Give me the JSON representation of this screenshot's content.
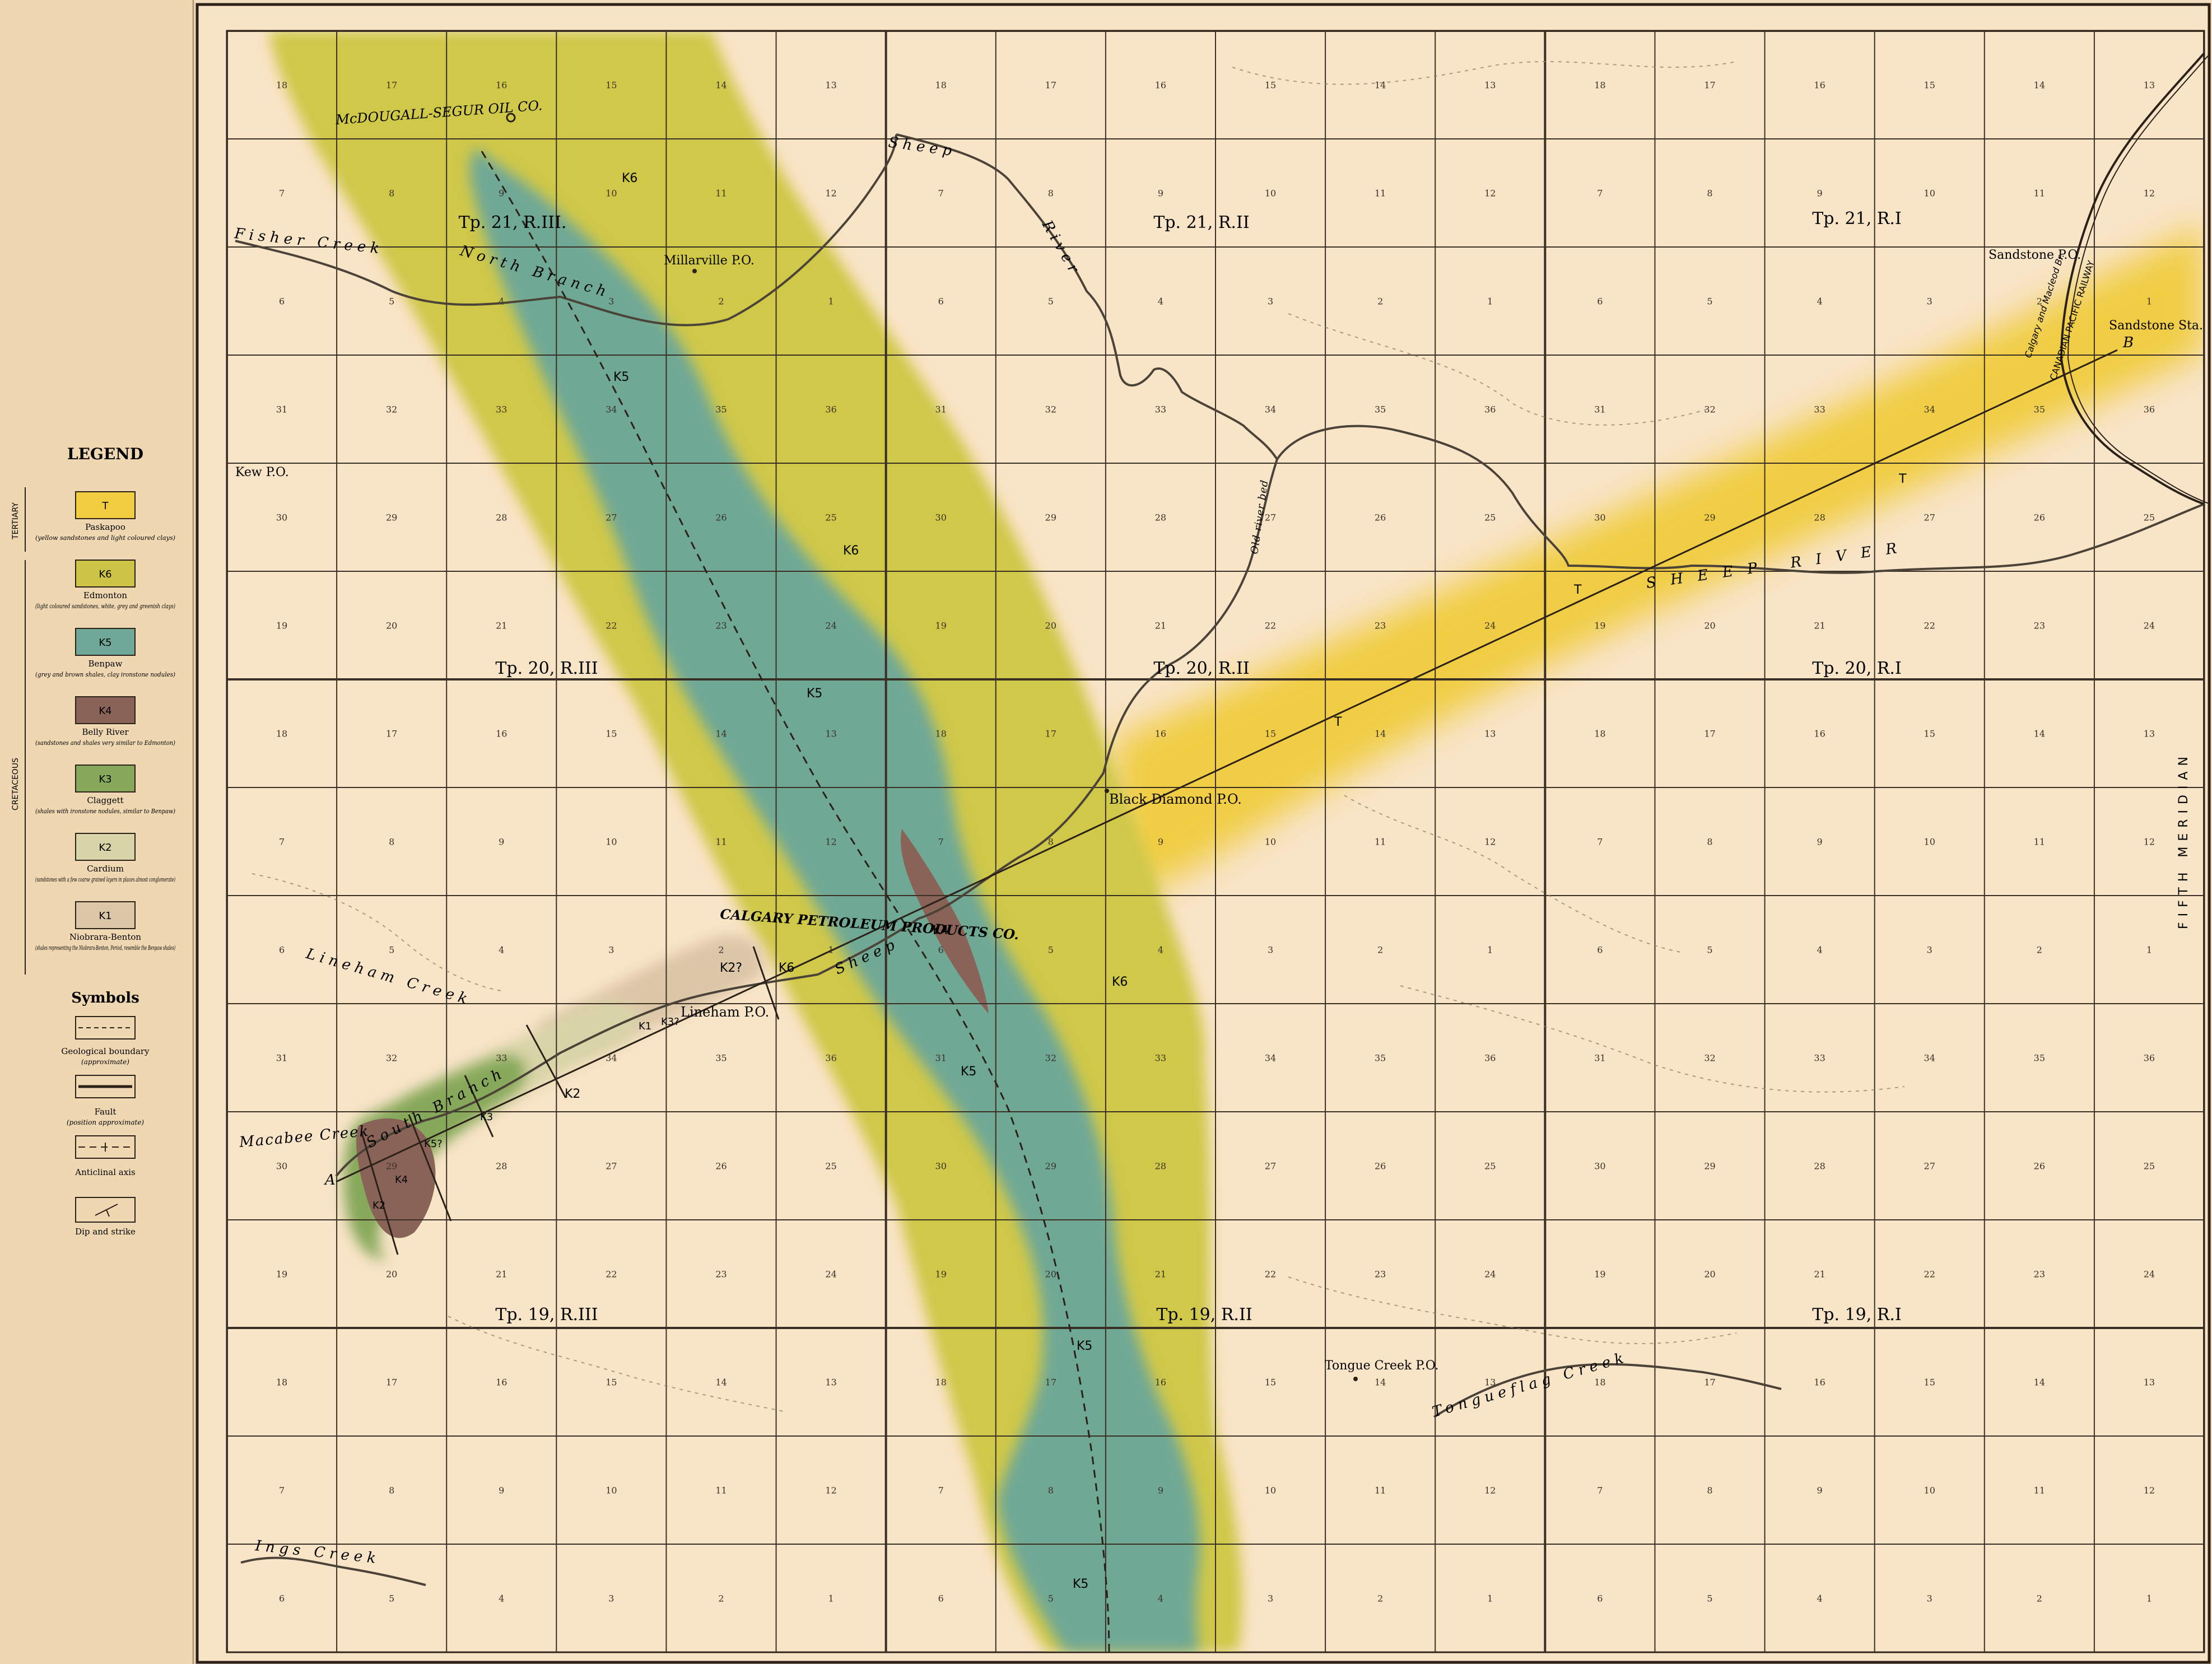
{
  "legend": {
    "title": "LEGEND",
    "group_tertiary": "TERTIARY",
    "group_cretaceous": "CRETACEOUS",
    "units": [
      {
        "code": "T",
        "name": "Paskapoo",
        "desc": "(yellow sandstones and light coloured clays)",
        "color": "#f0cc3e"
      },
      {
        "code": "K6",
        "name": "Edmonton",
        "desc": "(light coloured sandstones, white, grey and greenish clays)",
        "color": "#cdc447"
      },
      {
        "code": "K5",
        "name": "Benpaw",
        "desc": "(grey and brown shales, clay ironstone nodules)",
        "color": "#6fa896"
      },
      {
        "code": "K4",
        "name": "Belly River",
        "desc": "(sandstones and shales very similar to Edmonton)",
        "color": "#8a6358"
      },
      {
        "code": "K3",
        "name": "Claggett",
        "desc": "(shales with ironstone nodules, similar to Benpaw)",
        "color": "#86a85a"
      },
      {
        "code": "K2",
        "name": "Cardium",
        "desc": "(sandstones with a few coarse grained layers in places almost conglomerate)",
        "color": "#d9d4a8"
      },
      {
        "code": "K1",
        "name": "Niobrara-Benton",
        "desc": "(shales representing the Niobrara-Benton, Period, resemble the Benpaw shales)",
        "color": "#dcc6a8"
      }
    ],
    "symbols_title": "Symbols",
    "symbols": [
      {
        "name": "Geological boundary",
        "desc": "(approximate)"
      },
      {
        "name": "Fault",
        "desc": "(position approximate)"
      },
      {
        "name": "Anticlinal axis",
        "desc": ""
      },
      {
        "name": "Dip and strike",
        "desc": ""
      }
    ]
  },
  "townships": [
    {
      "label": "Tp. 21, R.III."
    },
    {
      "label": "Tp. 21, R.II"
    },
    {
      "label": "Tp. 21, R.I"
    },
    {
      "label": "Tp. 20, R.III"
    },
    {
      "label": "Tp. 20, R.II"
    },
    {
      "label": "Tp. 20, R.I"
    },
    {
      "label": "Tp. 19, R.III"
    },
    {
      "label": "Tp. 19, R.II"
    },
    {
      "label": "Tp. 19, R.I"
    }
  ],
  "places": [
    {
      "label": "McDOUGALL-SEGUR OIL CO."
    },
    {
      "label": "Millarville P.O."
    },
    {
      "label": "Kew P.O."
    },
    {
      "label": "Sandstone P.O."
    },
    {
      "label": "Sandstone Sta."
    },
    {
      "label": "Black Diamond P.O."
    },
    {
      "label": "CALGARY PETROLEUM PRODUCTS CO."
    },
    {
      "label": "Lineham P.O."
    },
    {
      "label": "Tongue Creek P.O."
    }
  ],
  "waterways": [
    {
      "label": "Sheep"
    },
    {
      "label": "River"
    },
    {
      "label": "North Branch"
    },
    {
      "label": "Fisher Creek"
    },
    {
      "label": "Lineham Creek"
    },
    {
      "label": "South Branch"
    },
    {
      "label": "Macabee Creek"
    },
    {
      "label": "Ings Creek"
    },
    {
      "label": "Tongueflag Creek"
    },
    {
      "label": "SHEEP RIVER"
    },
    {
      "label": "Old river bed"
    },
    {
      "label": "Sheep"
    }
  ],
  "unit_labels": [
    {
      "label": "K6"
    },
    {
      "label": "K5"
    },
    {
      "label": "K6"
    },
    {
      "label": "K5"
    },
    {
      "label": "K6"
    },
    {
      "label": "K5"
    },
    {
      "label": "K5"
    },
    {
      "label": "K5"
    },
    {
      "label": "T"
    },
    {
      "label": "T"
    },
    {
      "label": "T"
    },
    {
      "label": "K4"
    },
    {
      "label": "K2?"
    },
    {
      "label": "K6"
    },
    {
      "label": "K1"
    },
    {
      "label": "K3?"
    },
    {
      "label": "K2"
    },
    {
      "label": "K3"
    },
    {
      "label": "K5?"
    },
    {
      "label": "K4"
    },
    {
      "label": "K2"
    }
  ],
  "section_labels": [
    "A",
    "B"
  ],
  "railway_labels": [
    "CANADIAN PACIFIC RAILWAY",
    "Calgary and Macleod Br."
  ],
  "meridian_label": "FIFTH MERIDIAN",
  "section_rows": [
    [
      "18",
      "17",
      "16",
      "15",
      "14",
      "13",
      "18",
      "17",
      "16",
      "15",
      "14",
      "13",
      "18",
      "17",
      "16",
      "15",
      "14",
      "13"
    ],
    [
      "7",
      "8",
      "9",
      "10",
      "11",
      "12",
      "7",
      "8",
      "9",
      "10",
      "11",
      "12",
      "7",
      "8",
      "9",
      "10",
      "11",
      "12"
    ],
    [
      "6",
      "5",
      "4",
      "3",
      "2",
      "1",
      "6",
      "5",
      "4",
      "3",
      "2",
      "1",
      "6",
      "5",
      "4",
      "3",
      "2",
      "1"
    ],
    [
      "31",
      "32",
      "33",
      "34",
      "35",
      "36",
      "31",
      "32",
      "33",
      "34",
      "35",
      "36",
      "31",
      "32",
      "33",
      "34",
      "35",
      "36"
    ],
    [
      "30",
      "29",
      "28",
      "27",
      "26",
      "25",
      "30",
      "29",
      "28",
      "27",
      "26",
      "25",
      "30",
      "29",
      "28",
      "27",
      "26",
      "25"
    ],
    [
      "19",
      "20",
      "21",
      "22",
      "23",
      "24",
      "19",
      "20",
      "21",
      "22",
      "23",
      "24",
      "19",
      "20",
      "21",
      "22",
      "23",
      "24"
    ],
    [
      "18",
      "17",
      "16",
      "15",
      "14",
      "13",
      "18",
      "17",
      "16",
      "15",
      "14",
      "13",
      "18",
      "17",
      "16",
      "15",
      "14",
      "13"
    ],
    [
      "7",
      "8",
      "9",
      "10",
      "11",
      "12",
      "7",
      "8",
      "9",
      "10",
      "11",
      "12",
      "7",
      "8",
      "9",
      "10",
      "11",
      "12"
    ],
    [
      "6",
      "5",
      "4",
      "3",
      "2",
      "1",
      "6",
      "5",
      "4",
      "3",
      "2",
      "1",
      "6",
      "5",
      "4",
      "3",
      "2",
      "1"
    ],
    [
      "31",
      "32",
      "33",
      "34",
      "35",
      "36",
      "31",
      "32",
      "33",
      "34",
      "35",
      "36",
      "31",
      "32",
      "33",
      "34",
      "35",
      "36"
    ],
    [
      "30",
      "29",
      "28",
      "27",
      "26",
      "25",
      "30",
      "29",
      "28",
      "27",
      "26",
      "25",
      "30",
      "29",
      "28",
      "27",
      "26",
      "25"
    ],
    [
      "19",
      "20",
      "21",
      "22",
      "23",
      "24",
      "19",
      "20",
      "21",
      "22",
      "23",
      "24",
      "19",
      "20",
      "21",
      "22",
      "23",
      "24"
    ],
    [
      "18",
      "17",
      "16",
      "15",
      "14",
      "13",
      "18",
      "17",
      "16",
      "15",
      "14",
      "13",
      "18",
      "17",
      "16",
      "15",
      "14",
      "13"
    ],
    [
      "7",
      "8",
      "9",
      "10",
      "11",
      "12",
      "7",
      "8",
      "9",
      "10",
      "11",
      "12",
      "7",
      "8",
      "9",
      "10",
      "11",
      "12"
    ],
    [
      "6",
      "5",
      "4",
      "3",
      "2",
      "1",
      "6",
      "5",
      "4",
      "3",
      "2",
      "1",
      "6",
      "5",
      "4",
      "3",
      "2",
      "1"
    ]
  ]
}
